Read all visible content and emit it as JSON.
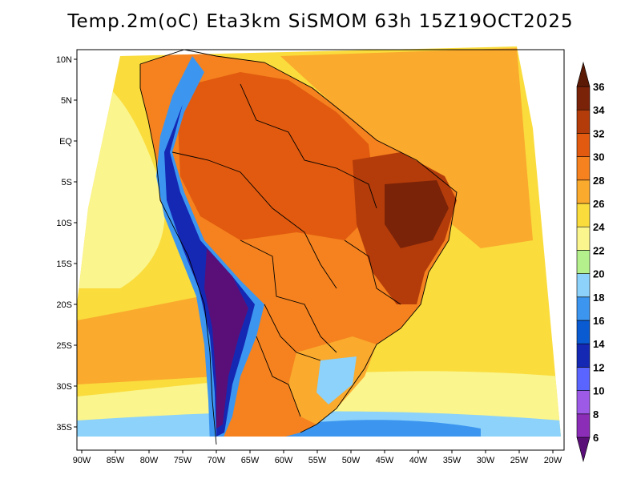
{
  "title": "Temp.2m(oC) Eta3km SiSMOM 63h 15Z19OCT2025",
  "lat_labels": [
    "10N",
    "5N",
    "EQ",
    "5S",
    "10S",
    "15S",
    "20S",
    "25S",
    "30S",
    "35S"
  ],
  "lon_labels": [
    "90W",
    "85W",
    "80W",
    "75W",
    "70W",
    "65W",
    "60W",
    "55W",
    "50W",
    "45W",
    "40W",
    "35W",
    "30W",
    "25W",
    "20W"
  ],
  "colorbar": {
    "levels": [
      "6",
      "8",
      "10",
      "12",
      "14",
      "16",
      "18",
      "20",
      "22",
      "24",
      "26",
      "28",
      "30",
      "32",
      "34",
      "36"
    ],
    "colors": [
      "#5a0f78",
      "#8c2db8",
      "#9c5ae6",
      "#5a64ff",
      "#1428b4",
      "#0a5ad2",
      "#3c96f0",
      "#8cd2fa",
      "#b4f08c",
      "#faf58c",
      "#fadc3c",
      "#faaa2d",
      "#f5821e",
      "#e15a0f",
      "#b43c0a",
      "#7a2308",
      "#5a1a05"
    ]
  },
  "palette": {
    "ocean_warm": "#faaa2d",
    "ocean_mild": "#fadc3c",
    "ocean_cool": "#faf58c",
    "amazon": "#e15a0f",
    "northeast": "#b43c0a",
    "andes_cold": "#1428b4",
    "andes_peak": "#5a0f78",
    "south_cool": "#8cd2fa",
    "border": "#000000"
  }
}
